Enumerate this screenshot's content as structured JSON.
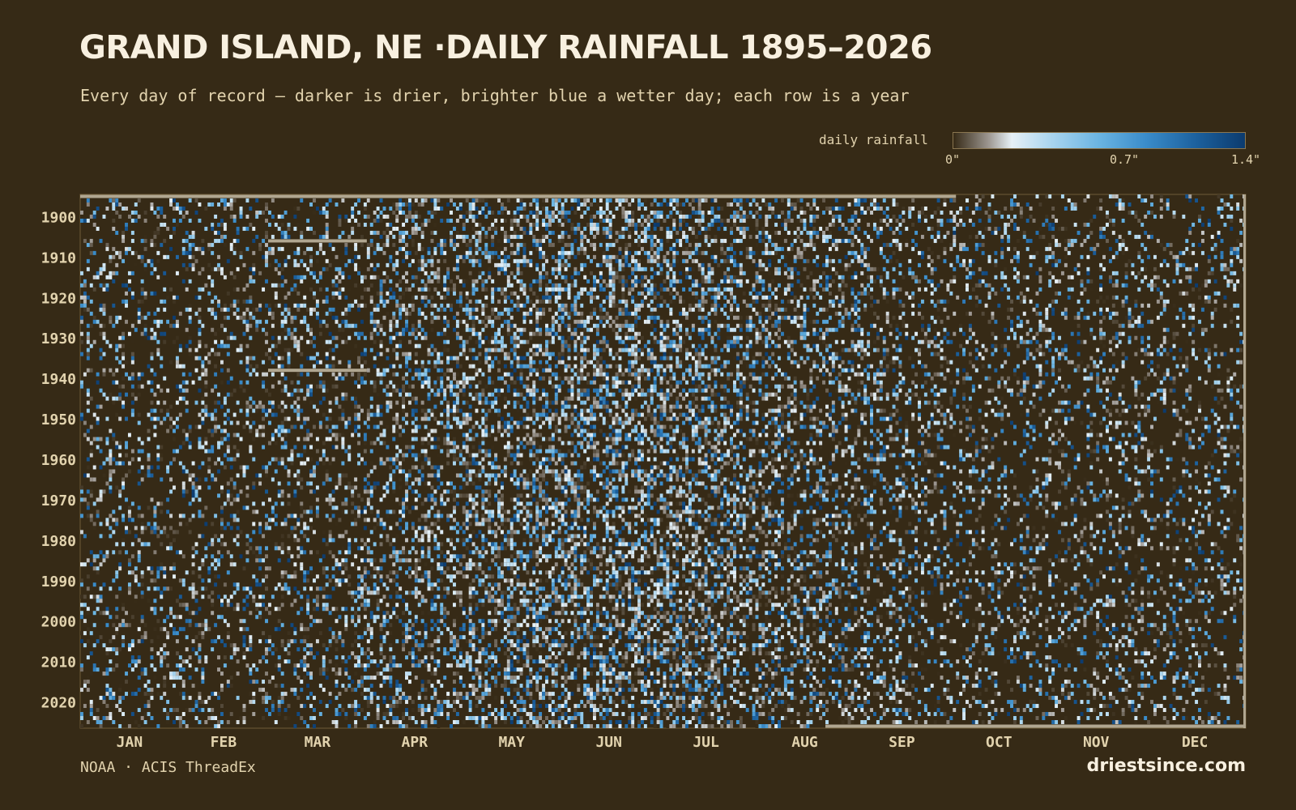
{
  "header": {
    "title": "GRAND ISLAND, NE ·DAILY RAINFALL 1895–2026",
    "subtitle": "Every day of record — darker is drier, brighter blue a wetter day; each row is a year"
  },
  "legend": {
    "label": "daily rainfall",
    "ticks": [
      "0\"",
      "0.7\"",
      "1.4\""
    ]
  },
  "footer": {
    "source": "NOAA · ACIS ThreadEx",
    "brand": "driestsince.com"
  },
  "colors": {
    "background": "#362a16",
    "dry": "#362a16",
    "trace": "#9c9690",
    "light": "#e6f0f6",
    "mid": "#6ab4e2",
    "wet": "#0c3b6e",
    "missing": "#b0a690",
    "axis_text": "#e2d3ae"
  },
  "chart_data": {
    "type": "heatmap",
    "x_axis": "day of year",
    "y_axis": "year",
    "year_range": [
      1895,
      2026
    ],
    "months": [
      "JAN",
      "FEB",
      "MAR",
      "APR",
      "MAY",
      "JUN",
      "JUL",
      "AUG",
      "SEP",
      "OCT",
      "NOV",
      "DEC"
    ],
    "year_ticks": [
      "1900",
      "1910",
      "1920",
      "1930",
      "1940",
      "1950",
      "1960",
      "1970",
      "1980",
      "1990",
      "2000",
      "2010",
      "2020"
    ],
    "value_range": [
      0,
      1.4
    ],
    "value_unit": "in",
    "colorscale": [
      "#362a16",
      "#9c9690",
      "#e6f0f6",
      "#a8d4ee",
      "#6ab4e2",
      "#3a8cca",
      "#1b5f9c",
      "#0c3b6e"
    ],
    "missing_records": [
      {
        "year": 1895,
        "start_day": 1,
        "end_day": 275
      },
      {
        "year": 1906,
        "start_day": 60,
        "end_day": 90
      },
      {
        "year": 1938,
        "start_day": 60,
        "end_day": 90
      },
      {
        "year": 2026,
        "start_day": 235,
        "end_day": 366
      }
    ]
  }
}
